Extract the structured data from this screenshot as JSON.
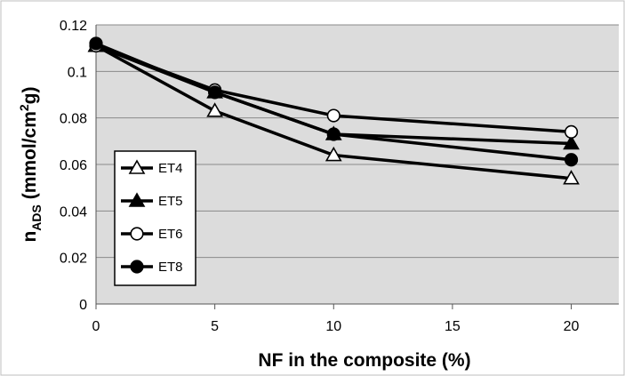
{
  "chart_data": {
    "type": "line",
    "title": "",
    "xlabel": "NF in the composite  (%)",
    "ylabel": {
      "main": "n",
      "sub": "ADS",
      "rest": " (mmol/cm",
      "sup": "2",
      "end": "g)"
    },
    "xlim": [
      0,
      22
    ],
    "ylim": [
      0,
      0.12
    ],
    "x_ticks": [
      "0",
      "5",
      "10",
      "15",
      "20"
    ],
    "y_ticks": [
      "0",
      "0.02",
      "0.04",
      "0.06",
      "0.08",
      "0.1",
      "0.12"
    ],
    "grid": true,
    "legend_position": "left",
    "colors": {
      "plot_bg": "#dcdcdc",
      "grid": "#8a8a8a",
      "line": "#000000"
    },
    "x": [
      0,
      5,
      10,
      20
    ],
    "series": [
      {
        "name": "ET4",
        "marker": "triangle-open",
        "values": [
          0.111,
          0.083,
          0.064,
          0.054
        ]
      },
      {
        "name": "ET5",
        "marker": "triangle-filled",
        "values": [
          0.111,
          0.091,
          0.073,
          0.069
        ]
      },
      {
        "name": "ET6",
        "marker": "circle-open",
        "values": [
          0.111,
          0.092,
          0.081,
          0.074
        ]
      },
      {
        "name": "ET8",
        "marker": "circle-filled",
        "values": [
          0.112,
          0.091,
          0.073,
          0.062
        ]
      }
    ]
  }
}
